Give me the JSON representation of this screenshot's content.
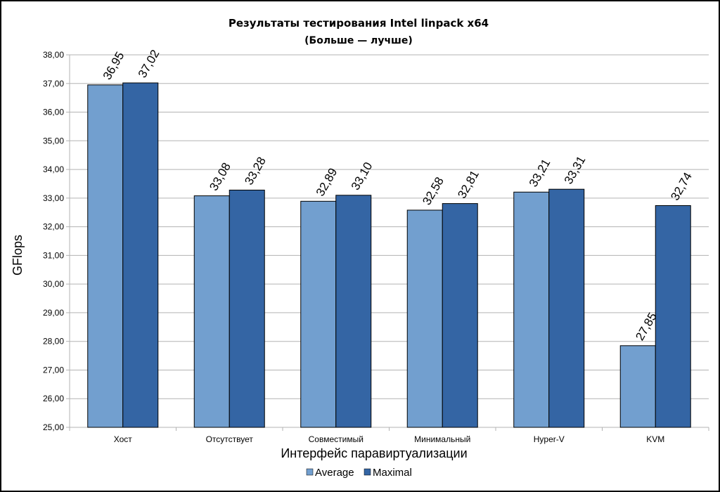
{
  "chart_data": {
    "type": "bar",
    "title": "Результаты тестирования Intel linpack x64",
    "subtitle": "(Больше — лучше)",
    "xlabel": "Интерфейс паравиртуализации",
    "ylabel": "GFlops",
    "categories": [
      "Хост",
      "Отсутствует",
      "Совместимый",
      "Минимальный",
      "Hyper-V",
      "KVM"
    ],
    "series": [
      {
        "name": "Average",
        "values": [
          36.95,
          33.08,
          32.89,
          32.58,
          33.21,
          27.85
        ],
        "labels": [
          "36,95",
          "33,08",
          "32,89",
          "32,58",
          "33,21",
          "27,85"
        ],
        "color": "#729fcf"
      },
      {
        "name": "Maximal",
        "values": [
          37.02,
          33.28,
          33.1,
          32.81,
          33.31,
          32.74
        ],
        "labels": [
          "37,02",
          "33,28",
          "33,10",
          "32,81",
          "33,31",
          "32,74"
        ],
        "color": "#3465a4"
      }
    ],
    "ylim": [
      25,
      38
    ],
    "yticks": [
      "25,00",
      "26,00",
      "27,00",
      "28,00",
      "29,00",
      "30,00",
      "31,00",
      "32,00",
      "33,00",
      "34,00",
      "35,00",
      "36,00",
      "37,00",
      "38,00"
    ],
    "grid": true,
    "legend": "bottom-center"
  }
}
